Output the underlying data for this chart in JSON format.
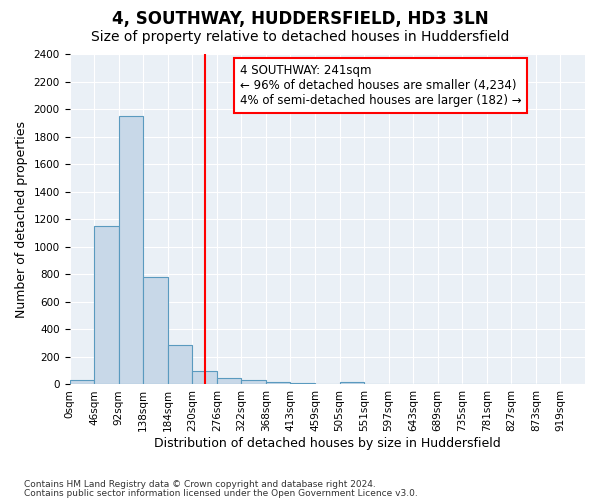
{
  "title": "4, SOUTHWAY, HUDDERSFIELD, HD3 3LN",
  "subtitle": "Size of property relative to detached houses in Huddersfield",
  "xlabel": "Distribution of detached houses by size in Huddersfield",
  "ylabel": "Number of detached properties",
  "footer1": "Contains HM Land Registry data © Crown copyright and database right 2024.",
  "footer2": "Contains public sector information licensed under the Open Government Licence v3.0.",
  "bin_labels": [
    "0sqm",
    "46sqm",
    "92sqm",
    "138sqm",
    "184sqm",
    "230sqm",
    "276sqm",
    "322sqm",
    "368sqm",
    "413sqm",
    "459sqm",
    "505sqm",
    "551sqm",
    "597sqm",
    "643sqm",
    "689sqm",
    "735sqm",
    "781sqm",
    "827sqm",
    "873sqm",
    "919sqm"
  ],
  "bar_values": [
    30,
    1150,
    1950,
    780,
    290,
    100,
    50,
    30,
    20,
    10,
    5,
    20,
    5,
    5,
    5,
    5,
    5,
    5,
    5,
    5
  ],
  "bar_color": "#c8d8e8",
  "bar_edge_color": "#5a9abf",
  "vline_x": 5.0,
  "vline_color": "red",
  "annotation_title": "4 SOUTHWAY: 241sqm",
  "annotation_line1": "← 96% of detached houses are smaller (4,234)",
  "annotation_line2": "4% of semi-detached houses are larger (182) →",
  "annotation_box_color": "white",
  "annotation_box_edge": "red",
  "ylim": [
    0,
    2400
  ],
  "yticks": [
    0,
    200,
    400,
    600,
    800,
    1000,
    1200,
    1400,
    1600,
    1800,
    2000,
    2200,
    2400
  ],
  "bg_color": "#eaf0f6",
  "grid_color": "white",
  "title_fontsize": 12,
  "subtitle_fontsize": 10,
  "axis_label_fontsize": 9,
  "tick_fontsize": 7.5,
  "annotation_fontsize": 8.5,
  "footer_fontsize": 6.5
}
